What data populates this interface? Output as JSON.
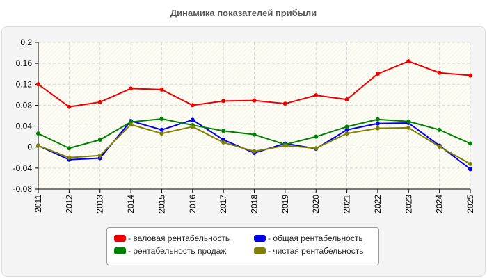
{
  "chart_data": {
    "type": "line",
    "title": "Динамика показателей прибыли",
    "xlabel": "",
    "ylabel": "",
    "categories": [
      "2011",
      "2012",
      "2013",
      "2014",
      "2015",
      "2016",
      "2017",
      "2018",
      "2019",
      "2020",
      "2021",
      "2022",
      "2023",
      "2024",
      "2025"
    ],
    "ylim": [
      -0.08,
      0.2
    ],
    "yticks": [
      "0.2",
      "0.16",
      "0.12",
      "0.08",
      "0.04",
      "0",
      "-0.04",
      "-0.08"
    ],
    "grid": true,
    "legend_position": "bottom",
    "series": [
      {
        "name": "- валовая рентабельность",
        "color": "#ee0000",
        "values": [
          0.12,
          0.077,
          0.086,
          0.112,
          0.11,
          0.08,
          0.088,
          0.089,
          0.083,
          0.099,
          0.091,
          0.14,
          0.164,
          0.142,
          0.137
        ]
      },
      {
        "name": "- общая рентабельность",
        "color": "#0000ee",
        "values": [
          0.003,
          -0.024,
          -0.021,
          0.05,
          0.033,
          0.052,
          0.014,
          -0.011,
          0.007,
          -0.003,
          0.033,
          0.045,
          0.046,
          0.003,
          -0.042
        ]
      },
      {
        "name": "- рентабельность продаж",
        "color": "#008000",
        "values": [
          0.026,
          -0.002,
          0.014,
          0.048,
          0.054,
          0.042,
          0.031,
          0.024,
          0.005,
          0.02,
          0.039,
          0.053,
          0.049,
          0.033,
          0.007
        ]
      },
      {
        "name": "- чистая рентабельность",
        "color": "#808000",
        "values": [
          0.003,
          -0.02,
          -0.016,
          0.043,
          0.026,
          0.039,
          0.009,
          -0.008,
          0.003,
          -0.002,
          0.026,
          0.036,
          0.037,
          0.001,
          -0.032
        ]
      }
    ]
  }
}
